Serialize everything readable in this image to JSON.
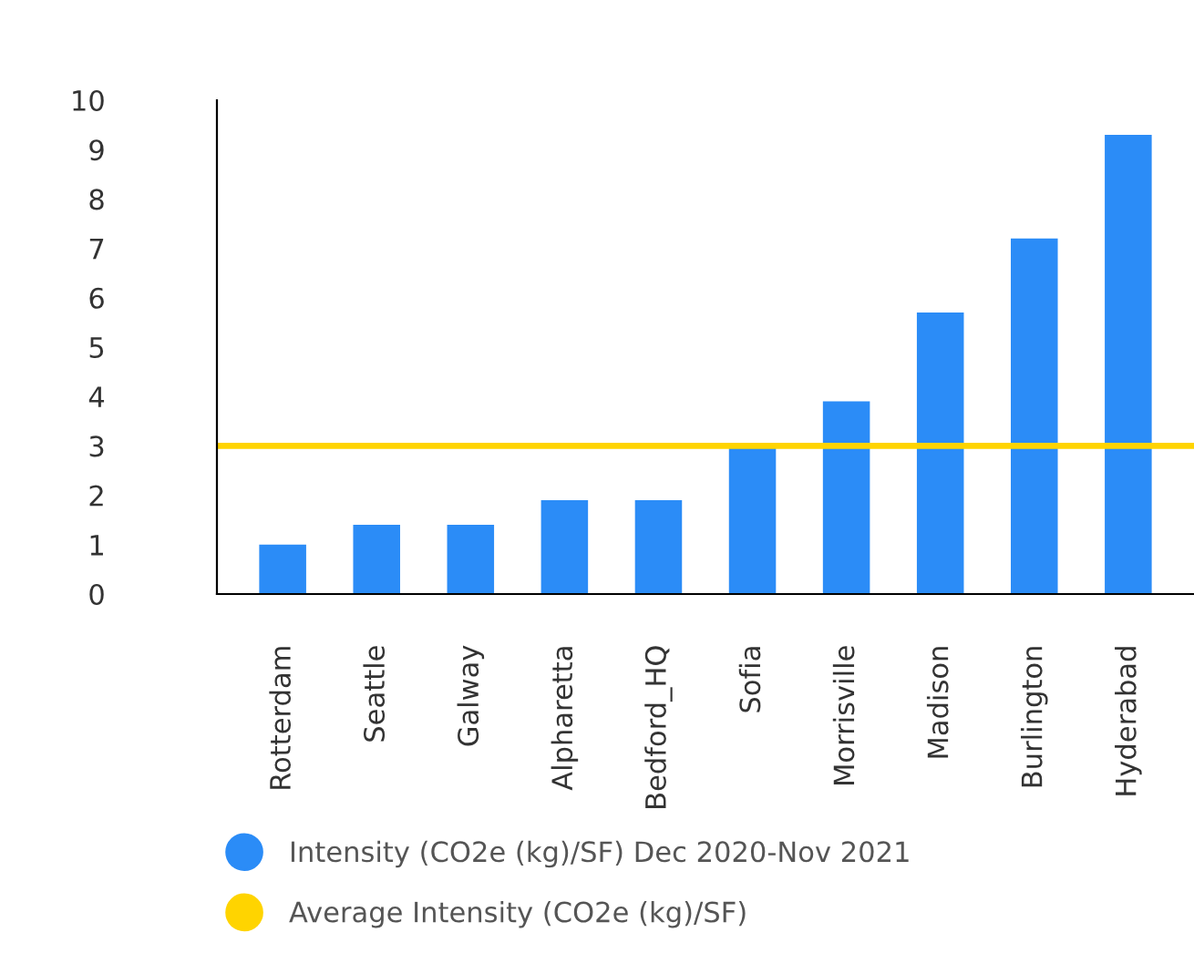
{
  "chart_data": {
    "type": "bar",
    "categories": [
      "Rotterdam",
      "Seattle",
      "Galway",
      "Alpharetta",
      "Bedford_HQ",
      "Sofia",
      "Morrisville",
      "Madison",
      "Burlington",
      "Hyderabad"
    ],
    "series": [
      {
        "name": "Intensity (CO2e (kg)/SF) Dec 2020-Nov 2021",
        "color": "#2b8cf7",
        "values": [
          1.0,
          1.4,
          1.4,
          1.9,
          1.9,
          3.0,
          3.9,
          5.7,
          7.2,
          9.3
        ]
      }
    ],
    "ylim": [
      0,
      10
    ],
    "yticks": [
      0,
      1,
      2,
      3,
      4,
      5,
      6,
      7,
      8,
      9,
      10
    ],
    "ref_lines": [
      {
        "axis": "y",
        "value": 3.0,
        "label": "Average Intensity (CO2e (kg)/SF)",
        "color": "#ffd400",
        "line_style": "solid"
      }
    ],
    "grid": false,
    "legend": "bottom",
    "marker": "circle"
  }
}
